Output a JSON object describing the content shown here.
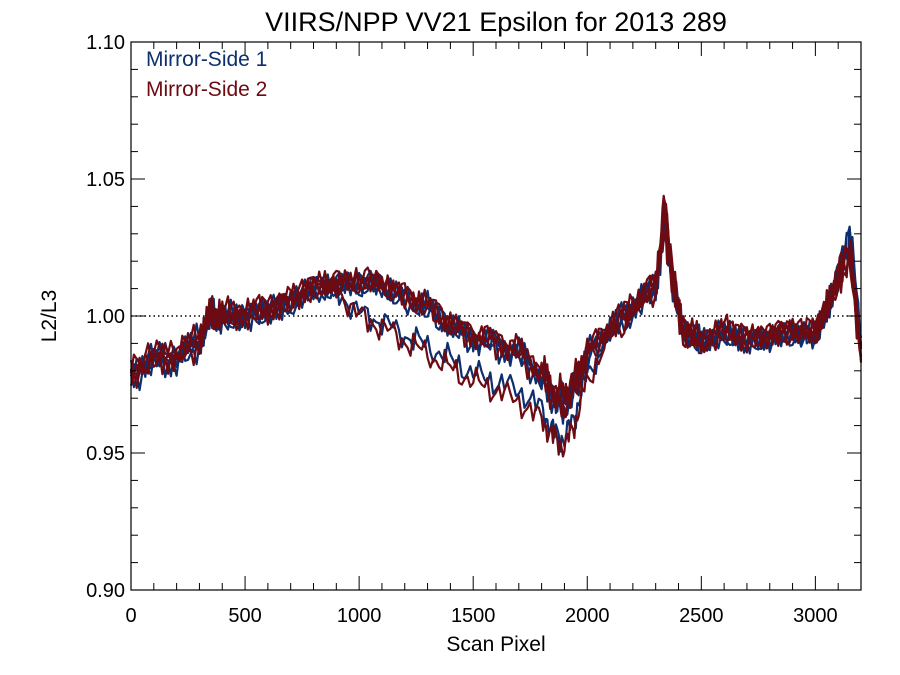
{
  "chart_data": {
    "type": "line",
    "title": "VIIRS/NPP VV21 Epsilon for 2013 289",
    "xlabel": "Scan Pixel",
    "ylabel": "L2/L3",
    "xlim": [
      0,
      3200
    ],
    "ylim": [
      0.9,
      1.1
    ],
    "x_ticks": [
      0,
      500,
      1000,
      1500,
      2000,
      2500,
      3000
    ],
    "x_tick_labels": [
      "0",
      "500",
      "1000",
      "1500",
      "2000",
      "2500",
      "3000"
    ],
    "y_ticks": [
      0.9,
      0.95,
      1.0,
      1.05,
      1.1
    ],
    "y_tick_labels": [
      "0.90",
      "0.95",
      "1.00",
      "1.05",
      "1.10"
    ],
    "reference_line": {
      "y": 1.0,
      "style": "dotted"
    },
    "legend_position": "top-left",
    "x": [
      0,
      100,
      200,
      300,
      350,
      400,
      500,
      600,
      700,
      800,
      900,
      1000,
      1100,
      1200,
      1300,
      1400,
      1500,
      1600,
      1700,
      1800,
      1850,
      1900,
      1950,
      2000,
      2100,
      2200,
      2300,
      2340,
      2380,
      2420,
      2500,
      2600,
      2700,
      2800,
      2900,
      3000,
      3050,
      3100,
      3150,
      3200
    ],
    "series": [
      {
        "name": "Mirror-Side 1",
        "color": "#0d2f6e",
        "traces": [
          [
            0.978,
            0.984,
            0.986,
            0.992,
            1.001,
            0.999,
            1.0,
            1.002,
            1.005,
            1.01,
            1.011,
            1.012,
            1.011,
            1.006,
            1.003,
            0.997,
            0.992,
            0.99,
            0.986,
            0.978,
            0.97,
            0.968,
            0.975,
            0.985,
            0.995,
            1.003,
            1.01,
            1.035,
            1.01,
            0.995,
            0.99,
            0.994,
            0.991,
            0.992,
            0.994,
            0.993,
            1.002,
            1.015,
            1.03,
            0.99
          ],
          [
            0.98,
            0.986,
            0.984,
            0.99,
            1.0,
            1.0,
            1.001,
            1.003,
            1.006,
            1.011,
            1.01,
            1.011,
            1.01,
            1.007,
            1.004,
            0.996,
            0.993,
            0.991,
            0.987,
            0.979,
            0.972,
            0.97,
            0.977,
            0.987,
            0.996,
            1.004,
            1.012,
            1.03,
            1.008,
            0.994,
            0.991,
            0.995,
            0.99,
            0.993,
            0.995,
            0.994,
            1.004,
            1.012,
            1.026,
            0.988
          ],
          [
            0.977,
            0.983,
            0.985,
            0.991,
            0.999,
            0.998,
            0.999,
            1.001,
            1.004,
            1.009,
            1.012,
            1.013,
            1.012,
            1.005,
            1.002,
            0.995,
            0.991,
            0.989,
            0.985,
            0.977,
            0.968,
            0.965,
            0.973,
            0.984,
            0.994,
            1.002,
            1.009,
            1.038,
            1.012,
            0.996,
            0.989,
            0.993,
            0.992,
            0.991,
            0.993,
            0.992,
            1.001,
            1.016,
            1.034,
            0.992
          ],
          [
            0.979,
            0.985,
            0.983,
            0.989,
            1.0,
            0.999,
            1.0,
            1.002,
            1.005,
            1.01,
            1.009,
            1.001,
            0.998,
            0.993,
            0.989,
            0.984,
            0.979,
            0.976,
            0.973,
            0.966,
            0.958,
            0.955,
            0.965,
            0.979,
            0.993,
            1.002,
            1.011,
            1.033,
            1.009,
            0.995,
            0.99,
            0.994,
            0.991,
            0.992,
            0.994,
            0.993,
            1.003,
            1.013,
            1.028,
            0.989
          ]
        ]
      },
      {
        "name": "Mirror-Side 2",
        "color": "#6e0a12",
        "traces": [
          [
            0.976,
            0.985,
            0.987,
            0.993,
            1.002,
            1.0,
            1.001,
            1.003,
            1.006,
            1.01,
            1.012,
            1.013,
            1.012,
            1.007,
            1.004,
            0.998,
            0.993,
            0.991,
            0.987,
            0.98,
            0.972,
            0.969,
            0.976,
            0.986,
            0.996,
            1.004,
            1.012,
            1.04,
            1.011,
            0.994,
            0.989,
            0.995,
            0.992,
            0.993,
            0.995,
            0.994,
            1.003,
            1.014,
            1.025,
            0.985
          ],
          [
            0.981,
            0.987,
            0.985,
            0.991,
            1.001,
            1.001,
            1.002,
            1.004,
            1.007,
            1.012,
            1.011,
            1.012,
            1.011,
            1.008,
            1.005,
            0.997,
            0.994,
            0.992,
            0.988,
            0.981,
            0.974,
            0.972,
            0.979,
            0.988,
            0.997,
            1.005,
            1.013,
            1.036,
            1.007,
            0.993,
            0.992,
            0.996,
            0.991,
            0.994,
            0.996,
            0.995,
            1.005,
            1.011,
            1.022,
            0.983
          ],
          [
            0.978,
            0.984,
            0.986,
            0.992,
            1.0,
            0.999,
            1.0,
            1.002,
            1.005,
            1.011,
            1.013,
            1.014,
            1.013,
            1.006,
            1.003,
            0.996,
            0.992,
            0.99,
            0.986,
            0.978,
            0.969,
            0.966,
            0.974,
            0.985,
            0.995,
            1.003,
            1.01,
            1.044,
            1.013,
            0.997,
            0.99,
            0.994,
            0.993,
            0.992,
            0.994,
            0.993,
            1.002,
            1.017,
            1.028,
            0.987
          ],
          [
            0.98,
            0.986,
            0.984,
            0.99,
            1.001,
            1.0,
            1.001,
            1.003,
            1.006,
            1.011,
            1.01,
            1.0,
            0.996,
            0.991,
            0.986,
            0.981,
            0.976,
            0.973,
            0.969,
            0.962,
            0.956,
            0.952,
            0.962,
            0.977,
            0.992,
            1.001,
            1.01,
            1.031,
            1.008,
            0.994,
            0.991,
            0.995,
            0.992,
            0.993,
            0.995,
            0.994,
            1.004,
            1.012,
            1.02,
            0.984
          ]
        ]
      }
    ]
  }
}
